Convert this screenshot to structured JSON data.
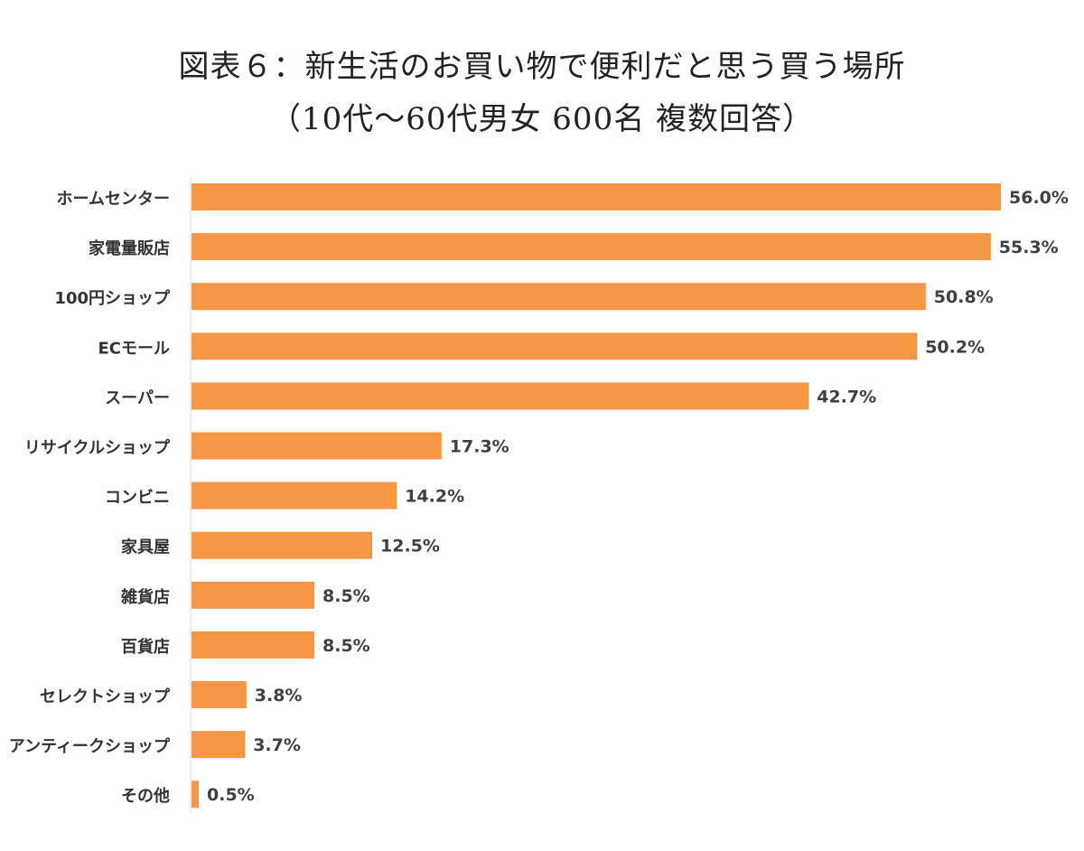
{
  "chart_data": {
    "type": "bar",
    "orientation": "horizontal",
    "title": "図表６：新生活のお買い物で便利だと思う買う場所",
    "subtitle": "（10代〜60代男女 600名 複数回答）",
    "categories": [
      "ホームセンター",
      "家電量販店",
      "100円ショップ",
      "ECモール",
      "スーパー",
      "リサイクルショップ",
      "コンビニ",
      "家具屋",
      "雑貨店",
      "百貨店",
      "セレクトショップ",
      "アンティークショップ",
      "その他"
    ],
    "values": [
      56.0,
      55.3,
      50.8,
      50.2,
      42.7,
      17.3,
      14.2,
      12.5,
      8.5,
      8.5,
      3.8,
      3.7,
      0.5
    ],
    "value_labels": [
      "56.0%",
      "55.3%",
      "50.8%",
      "50.2%",
      "42.7%",
      "17.3%",
      "14.2%",
      "12.5%",
      "8.5%",
      "8.5%",
      "3.8%",
      "3.7%",
      "0.5%"
    ],
    "xlabel": "",
    "ylabel": "",
    "xlim": [
      0,
      56
    ],
    "grid": false,
    "legend": "none",
    "bar_color": "#F79646",
    "label_color": "#333333",
    "value_color": "#404040",
    "axis_color": "#D9D9D9"
  }
}
